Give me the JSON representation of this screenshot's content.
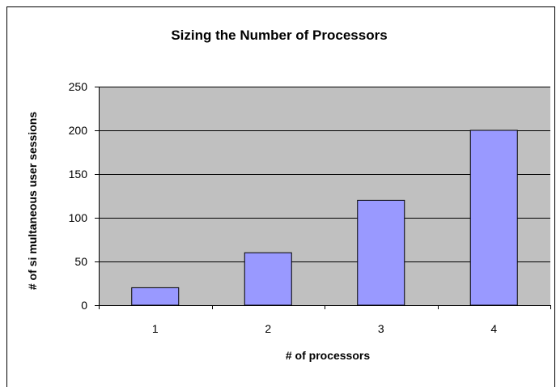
{
  "chart_data": {
    "type": "bar",
    "title": "Sizing the Number of Processors",
    "xlabel": "# of processors",
    "ylabel": "# of si multaneous user sessions",
    "categories": [
      "1",
      "2",
      "3",
      "4"
    ],
    "values": [
      20,
      60,
      120,
      200
    ],
    "ylim": [
      0,
      250
    ],
    "yticks": [
      0,
      50,
      100,
      150,
      200,
      250
    ],
    "grid": true,
    "legend": "none"
  },
  "colors": {
    "plot_background": "#c0c0c0",
    "bar_fill": "#9999ff",
    "bar_stroke": "#000000",
    "gridline": "#000000",
    "frame": "#000000"
  }
}
